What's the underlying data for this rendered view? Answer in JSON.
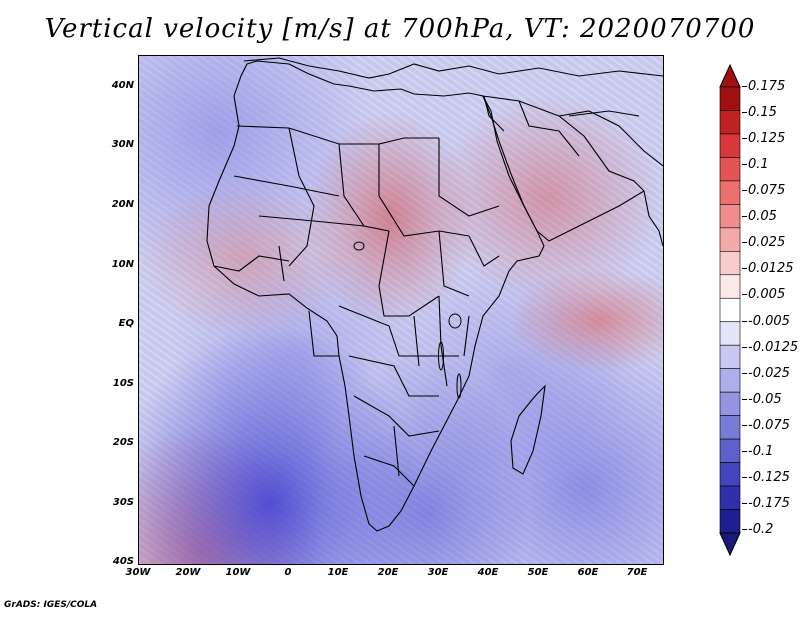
{
  "title": "Vertical velocity [m/s] at 700hPa, VT: 2020070700",
  "credit": "GrADS: IGES/COLA",
  "lat_labels": [
    "40N",
    "30N",
    "20N",
    "10N",
    "EQ",
    "10S",
    "20S",
    "30S",
    "40S"
  ],
  "lat_values": [
    40,
    30,
    20,
    10,
    0,
    -10,
    -20,
    -30,
    -40
  ],
  "lon_labels": [
    "30W",
    "20W",
    "10W",
    "0",
    "10E",
    "20E",
    "30E",
    "40E",
    "50E",
    "60E",
    "70E"
  ],
  "lon_values": [
    -30,
    -20,
    -10,
    0,
    10,
    20,
    30,
    40,
    50,
    60,
    70
  ],
  "map_extent": {
    "lon_min": -30,
    "lon_max": 75,
    "lat_min": -40,
    "lat_max": 45
  },
  "colorbar": {
    "labels": [
      "0.175",
      "0.15",
      "0.125",
      "0.1",
      "0.075",
      "0.05",
      "0.025",
      "0.0125",
      "0.005",
      "-0.005",
      "-0.0125",
      "-0.025",
      "-0.05",
      "-0.075",
      "-0.1",
      "-0.125",
      "-0.175",
      "-0.2"
    ],
    "colors": [
      "#a01010",
      "#c02222",
      "#d83838",
      "#e45454",
      "#ec7070",
      "#f08c8c",
      "#f4aaaa",
      "#f8cccc",
      "#fde8e8",
      "#ffffff",
      "#e4e4fa",
      "#c8c8f2",
      "#aeaeea",
      "#9494e2",
      "#7a7ad8",
      "#6060cc",
      "#4444bc",
      "#3030aa",
      "#1e1e90"
    ],
    "top_arrow_color": "#a01010",
    "bottom_arrow_color": "#1a1a7a"
  }
}
